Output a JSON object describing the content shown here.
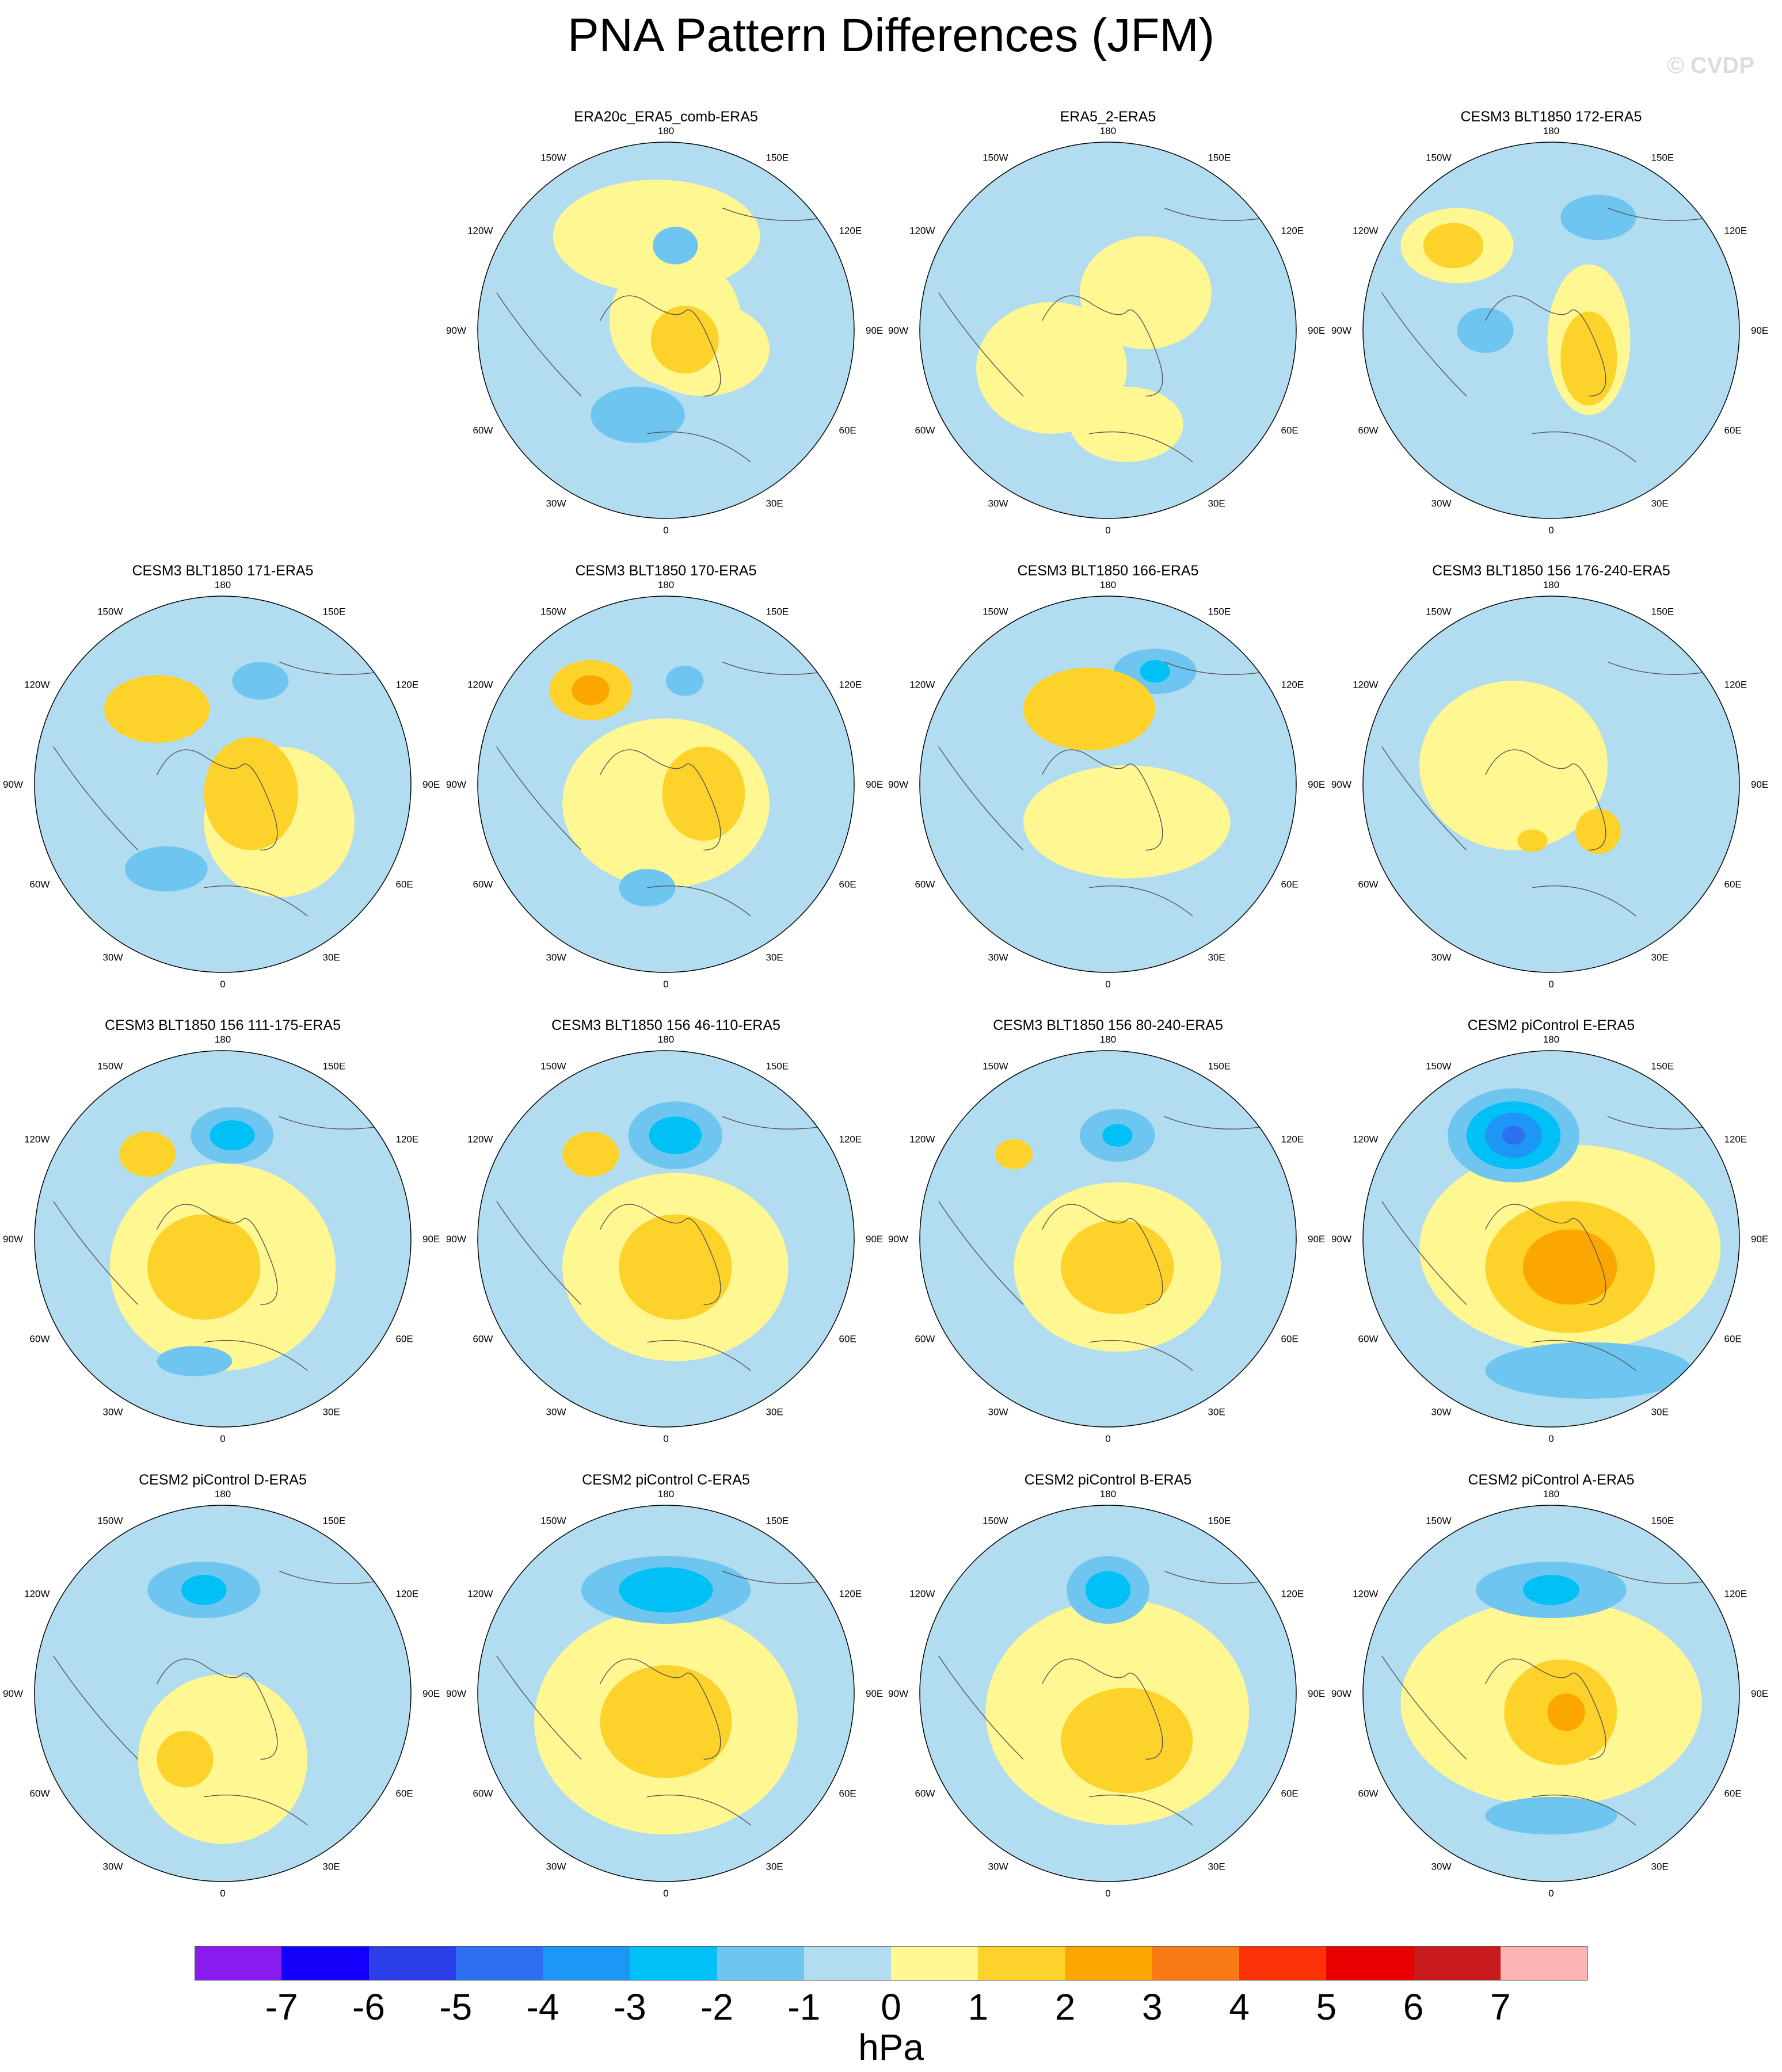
{
  "title": "PNA Pattern Differences (JFM)",
  "watermark": "© CVDP",
  "panels": [
    {
      "title": "ERA20c_ERA5_comb-ERA5",
      "present": true
    },
    {
      "title": "ERA5_2-ERA5",
      "present": true
    },
    {
      "title": "CESM3 BLT1850 172-ERA5",
      "present": true
    },
    {
      "title": "CESM3 BLT1850 171-ERA5",
      "present": true
    },
    {
      "title": "CESM3 BLT1850 170-ERA5",
      "present": true
    },
    {
      "title": "CESM3 BLT1850 166-ERA5",
      "present": true
    },
    {
      "title": "CESM3 BLT1850 156 176-240-ERA5",
      "present": true
    },
    {
      "title": "CESM3 BLT1850 156 111-175-ERA5",
      "present": true
    },
    {
      "title": "CESM3 BLT1850 156 46-110-ERA5",
      "present": true
    },
    {
      "title": "CESM3 BLT1850 156 80-240-ERA5",
      "present": true
    },
    {
      "title": "CESM2 piControl E-ERA5",
      "present": true
    },
    {
      "title": "CESM2 piControl D-ERA5",
      "present": true
    },
    {
      "title": "CESM2 piControl C-ERA5",
      "present": true
    },
    {
      "title": "CESM2 piControl B-ERA5",
      "present": true
    },
    {
      "title": "CESM2 piControl A-ERA5",
      "present": true
    }
  ],
  "longitude_labels": [
    "180",
    "150E",
    "120E",
    "90E",
    "60E",
    "30E",
    "0",
    "30W",
    "60W",
    "90W",
    "120W",
    "150W"
  ],
  "colorbar": {
    "units": "hPa",
    "tick_labels": [
      "-7",
      "-6",
      "-5",
      "-4",
      "-3",
      "-2",
      "-1",
      "0",
      "1",
      "2",
      "3",
      "4",
      "5",
      "6",
      "7"
    ],
    "colors": [
      "#8a1cf0",
      "#1400fa",
      "#2c3ee8",
      "#2e6ef0",
      "#1e96f5",
      "#00c0f5",
      "#6ec6f0",
      "#b2dcf0",
      "#fff791",
      "#fcd22b",
      "#fba700",
      "#f97a15",
      "#fb3208",
      "#ea0000",
      "#c8191c",
      "#fdb4b4"
    ]
  }
}
